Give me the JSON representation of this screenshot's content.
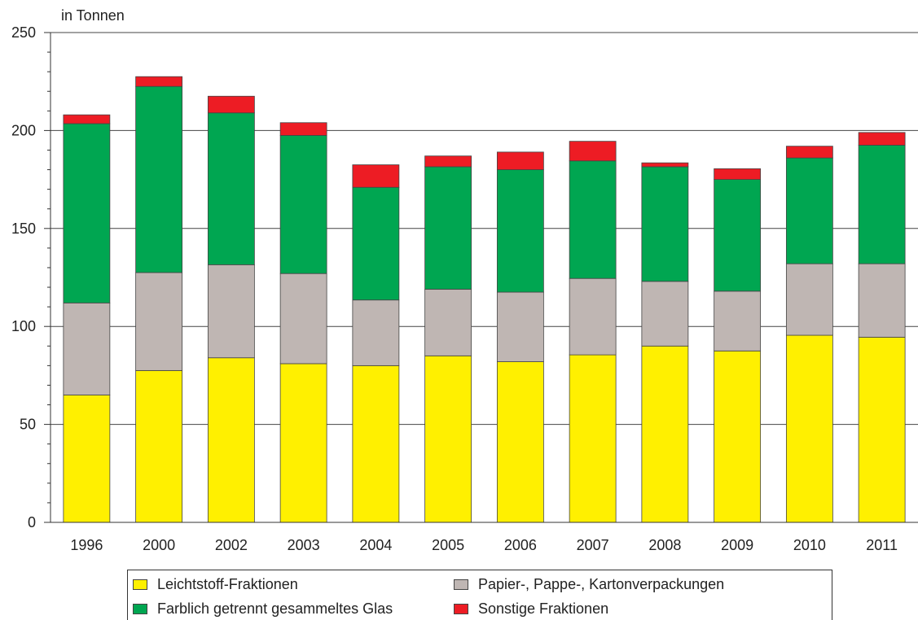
{
  "chart_data": {
    "type": "bar",
    "stacked": true,
    "ylabel": "in Tonnen",
    "ylim": [
      0,
      250
    ],
    "yticks": [
      0,
      50,
      100,
      150,
      200,
      250
    ],
    "grid": true,
    "legend_position": "bottom",
    "categories": [
      "1996",
      "2000",
      "2002",
      "2003",
      "2004",
      "2005",
      "2006",
      "2007",
      "2008",
      "2009",
      "2010",
      "2011"
    ],
    "series": [
      {
        "name": "Leichtstoff-Fraktionen",
        "color": "#fff000",
        "values": [
          65,
          77.5,
          84,
          81,
          80,
          85,
          82,
          85.5,
          90,
          87.5,
          95.5,
          94.5
        ]
      },
      {
        "name": "Papier-, Pappe-, Kartonverpackungen",
        "color": "#bfb6b3",
        "values": [
          47,
          50,
          47.5,
          46,
          33.5,
          34,
          35.5,
          39,
          33,
          30.5,
          36.5,
          37.5
        ]
      },
      {
        "name": "Farblich getrennt gesammeltes Glas",
        "color": "#00a651",
        "values": [
          91.5,
          95,
          77.5,
          70.5,
          57.5,
          62.5,
          62.5,
          60,
          58.5,
          57,
          54,
          60.5
        ]
      },
      {
        "name": "Sonstige Fraktionen",
        "color": "#ed1c24",
        "values": [
          4.5,
          5,
          8.5,
          6.5,
          11.5,
          5.5,
          9,
          10,
          2,
          5.5,
          6,
          6.5
        ]
      }
    ]
  }
}
